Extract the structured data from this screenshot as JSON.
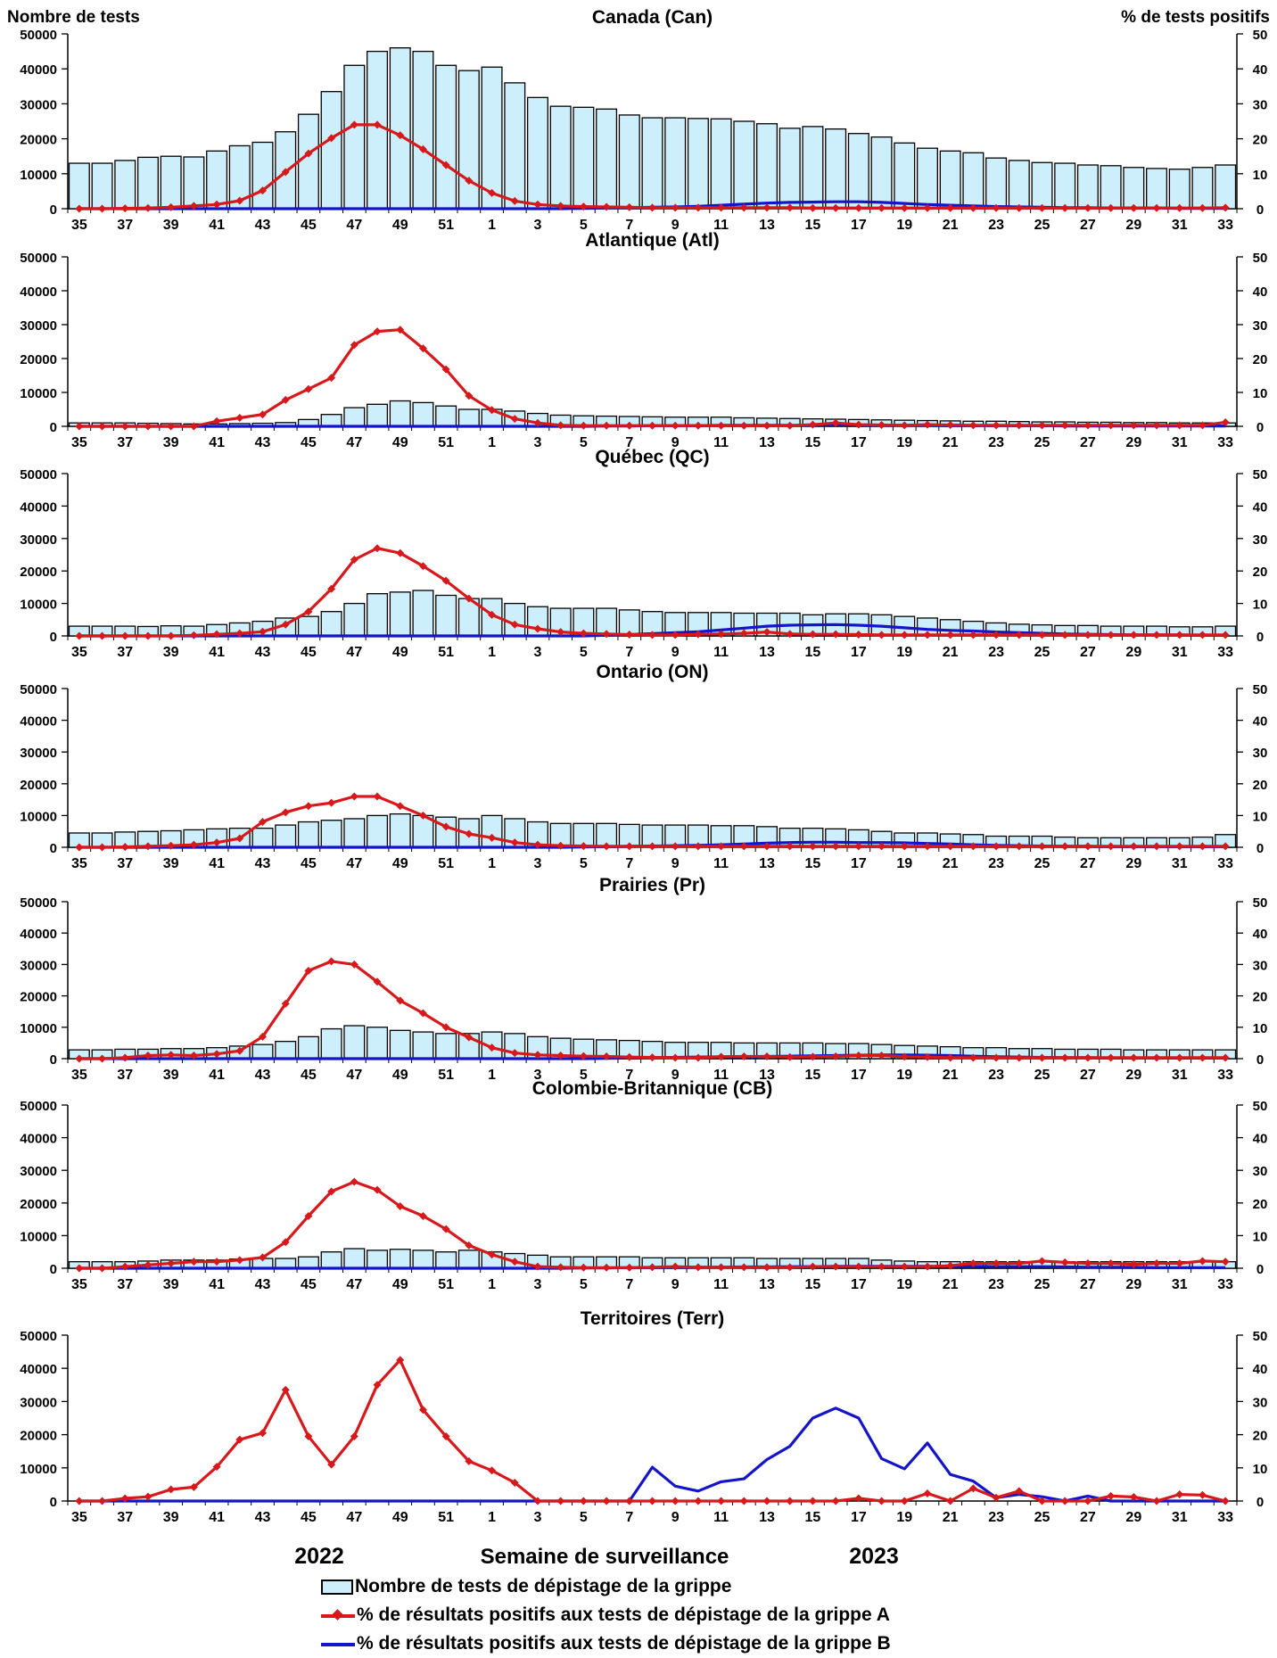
{
  "chart_data": {
    "type": "bar",
    "left_axis_title": "Nombre de tests",
    "right_axis_title": "% de tests positifs",
    "xlabel": "Semaine de surveillance",
    "year_labels": [
      "2022",
      "2023"
    ],
    "y_ticks": [
      "0",
      "10000",
      "20000",
      "30000",
      "40000",
      "50000"
    ],
    "y2_ticks": [
      "0",
      "10",
      "20",
      "30",
      "40",
      "50"
    ],
    "ylim": [
      0,
      50000
    ],
    "y2lim": [
      0,
      50
    ],
    "weeks": [
      35,
      36,
      37,
      38,
      39,
      40,
      41,
      42,
      43,
      44,
      45,
      46,
      47,
      48,
      49,
      50,
      51,
      52,
      1,
      2,
      3,
      4,
      5,
      6,
      7,
      8,
      9,
      10,
      11,
      12,
      13,
      14,
      15,
      16,
      17,
      18,
      19,
      20,
      21,
      22,
      23,
      24,
      25,
      26,
      27,
      28,
      29,
      30,
      31,
      32,
      33
    ],
    "x_tick_labels": [
      "35",
      "37",
      "39",
      "41",
      "43",
      "45",
      "47",
      "49",
      "51",
      "1",
      "3",
      "5",
      "7",
      "9",
      "11",
      "13",
      "15",
      "17",
      "19",
      "21",
      "23",
      "25",
      "27",
      "29",
      "31",
      "33"
    ],
    "colors": {
      "bars": "#cdeefb",
      "flu_a": "#d7191c",
      "flu_b": "#1414c8"
    },
    "legend": {
      "tests": "Nombre de tests de dépistage de la grippe",
      "flu_a": "% de résultats positifs aux tests de dépistage de la grippe A",
      "flu_b": "% de résultats positifs aux tests de dépistage de la grippe B"
    },
    "panels": [
      {
        "title": "Canada (Can)",
        "tests": [
          13000,
          13000,
          13800,
          14700,
          15000,
          14800,
          16500,
          18000,
          19000,
          22000,
          27000,
          33500,
          41000,
          45000,
          46000,
          45000,
          41000,
          39500,
          40500,
          36000,
          31800,
          29300,
          29000,
          28500,
          26800,
          26000,
          26000,
          25800,
          25700,
          25000,
          24300,
          23000,
          23500,
          22800,
          21500,
          20500,
          18800,
          17300,
          16500,
          16000,
          14500,
          13800,
          13200,
          13000,
          12500,
          12300,
          11800,
          11500,
          11300,
          11800,
          12500
        ],
        "flu_a": [
          0,
          0,
          0.1,
          0.2,
          0.4,
          0.8,
          1.2,
          2.3,
          5.2,
          10.5,
          15.8,
          20.2,
          24,
          24,
          21,
          17,
          12.5,
          8,
          4.5,
          2.2,
          1.2,
          0.8,
          0.6,
          0.5,
          0.4,
          0.3,
          0.3,
          0.3,
          0.3,
          0.3,
          0.3,
          0.3,
          0.2,
          0.2,
          0.2,
          0.2,
          0.2,
          0.2,
          0.2,
          0.2,
          0.2,
          0.2,
          0.2,
          0.2,
          0.2,
          0.2,
          0.2,
          0.2,
          0.2,
          0.2,
          0.3
        ],
        "flu_b": [
          0,
          0,
          0,
          0,
          0,
          0,
          0,
          0,
          0,
          0,
          0,
          0,
          0,
          0,
          0,
          0,
          0,
          0,
          0,
          0,
          0,
          0,
          0.1,
          0.2,
          0.3,
          0.4,
          0.5,
          0.7,
          1,
          1.3,
          1.6,
          1.8,
          1.9,
          2,
          2,
          1.8,
          1.5,
          1.2,
          1,
          0.8,
          0.6,
          0.5,
          0.4,
          0.3,
          0.3,
          0.2,
          0.2,
          0.2,
          0.1,
          0.1,
          0.1
        ]
      },
      {
        "title": "Atlantique (Atl)",
        "tests": [
          1000,
          1000,
          1000,
          900,
          800,
          700,
          700,
          800,
          900,
          1100,
          2000,
          3500,
          5500,
          6500,
          7500,
          7000,
          6000,
          5000,
          5000,
          4500,
          3800,
          3300,
          3100,
          3000,
          2900,
          2800,
          2700,
          2700,
          2700,
          2500,
          2400,
          2300,
          2200,
          2100,
          2000,
          1900,
          1800,
          1700,
          1600,
          1500,
          1500,
          1400,
          1300,
          1300,
          1200,
          1200,
          1100,
          1100,
          1000,
          1000,
          1000
        ],
        "flu_a": [
          0,
          0,
          0,
          0,
          0,
          0,
          1.5,
          2.5,
          3.5,
          7.8,
          11,
          14.3,
          24,
          28,
          28.5,
          23,
          16.8,
          9,
          4.8,
          2.2,
          1,
          0.3,
          0.2,
          0.2,
          0.2,
          0.2,
          0.2,
          0.2,
          0.2,
          0.2,
          0.2,
          0.2,
          0.5,
          1,
          0.5,
          0.4,
          0.3,
          0.5,
          0.4,
          0.3,
          0.3,
          0.3,
          0.3,
          0.3,
          0.3,
          0.3,
          0.3,
          0.3,
          0.3,
          0.3,
          1.2
        ],
        "flu_b": [
          0,
          0,
          0,
          0,
          0,
          0,
          0,
          0,
          0,
          0,
          0,
          0,
          0,
          0,
          0,
          0,
          0,
          0,
          0,
          0,
          0,
          0,
          0,
          0.1,
          0.1,
          0.2,
          0.2,
          0.2,
          0.3,
          0.3,
          0.3,
          0.3,
          0.3,
          0.4,
          0.4,
          0.3,
          0.3,
          0.3,
          0.2,
          0.2,
          0.2,
          0.2,
          0.2,
          0.1,
          0.1,
          0.1,
          0.1,
          0.1,
          0.1,
          0.1,
          0.1
        ]
      },
      {
        "title": "Québec (QC)",
        "tests": [
          3000,
          3000,
          3000,
          2900,
          3100,
          3000,
          3500,
          4000,
          4500,
          5500,
          6000,
          7500,
          10000,
          13000,
          13500,
          14000,
          12500,
          11500,
          11500,
          10000,
          9000,
          8500,
          8500,
          8500,
          8000,
          7500,
          7200,
          7200,
          7200,
          7000,
          7000,
          7000,
          6500,
          6800,
          6800,
          6500,
          6000,
          5500,
          5000,
          4500,
          4000,
          3600,
          3400,
          3200,
          3200,
          3000,
          3000,
          3000,
          2800,
          2800,
          3000
        ],
        "flu_a": [
          0,
          0,
          0,
          0,
          0,
          0.2,
          0.5,
          0.8,
          1.3,
          3.5,
          7.5,
          14.5,
          23.5,
          27,
          25.5,
          21.5,
          17,
          11.5,
          6.5,
          3.5,
          2.2,
          1.2,
          0.8,
          0.6,
          0.4,
          0.3,
          0.3,
          0.5,
          0.6,
          0.8,
          1.2,
          0.6,
          0.5,
          0.5,
          0.4,
          0.3,
          0.3,
          0.3,
          0.3,
          0.3,
          0.3,
          0.3,
          0.3,
          0.3,
          0.3,
          0.3,
          0.3,
          0.3,
          0.3,
          0.3,
          0.3
        ],
        "flu_b": [
          0,
          0,
          0,
          0,
          0,
          0,
          0,
          0,
          0,
          0,
          0,
          0,
          0,
          0,
          0,
          0,
          0,
          0,
          0,
          0,
          0,
          0,
          0,
          0.2,
          0.4,
          0.7,
          1,
          1.3,
          1.8,
          2.4,
          3,
          3.3,
          3.4,
          3.5,
          3.3,
          3,
          2.5,
          2,
          1.7,
          1.5,
          1.2,
          1,
          0.8,
          0.6,
          0.5,
          0.4,
          0.3,
          0.3,
          0.3,
          0.2,
          0.2
        ]
      },
      {
        "title": "Ontario (ON)",
        "tests": [
          4500,
          4500,
          4800,
          5000,
          5200,
          5500,
          5800,
          6000,
          6000,
          7000,
          8000,
          8500,
          9000,
          10000,
          10500,
          10000,
          9500,
          9000,
          10000,
          9000,
          8000,
          7500,
          7500,
          7500,
          7200,
          7000,
          7000,
          7000,
          6800,
          6800,
          6500,
          6000,
          6000,
          5800,
          5500,
          5000,
          4500,
          4500,
          4200,
          4000,
          3500,
          3500,
          3500,
          3200,
          3000,
          3000,
          3000,
          3000,
          3000,
          3200,
          4000
        ],
        "flu_a": [
          0,
          0,
          0.1,
          0.3,
          0.5,
          0.8,
          1.5,
          2.8,
          8,
          11,
          13,
          14,
          16,
          16,
          13,
          10,
          6.5,
          4.2,
          3,
          1.5,
          0.8,
          0.5,
          0.4,
          0.3,
          0.3,
          0.3,
          0.3,
          0.3,
          0.3,
          0.3,
          0.3,
          0.3,
          0.3,
          0.3,
          0.3,
          0.3,
          0.3,
          0.3,
          0.3,
          0.3,
          0.3,
          0.3,
          0.3,
          0.3,
          0.3,
          0.3,
          0.3,
          0.3,
          0.3,
          0.3,
          0.3
        ],
        "flu_b": [
          0,
          0,
          0,
          0,
          0,
          0,
          0,
          0,
          0,
          0,
          0,
          0,
          0,
          0,
          0,
          0,
          0,
          0,
          0,
          0,
          0,
          0,
          0.1,
          0.2,
          0.3,
          0.4,
          0.5,
          0.6,
          0.8,
          1,
          1.3,
          1.5,
          1.6,
          1.6,
          1.5,
          1.5,
          1.4,
          1.2,
          1,
          0.8,
          0.6,
          0.5,
          0.4,
          0.3,
          0.3,
          0.2,
          0.2,
          0.2,
          0.2,
          0.2,
          0.2
        ]
      },
      {
        "title": "Prairies (Pr)",
        "tests": [
          2800,
          2800,
          3000,
          3000,
          3200,
          3200,
          3500,
          4000,
          4500,
          5500,
          7000,
          9500,
          10500,
          10000,
          9000,
          8500,
          8000,
          8000,
          8500,
          8000,
          7000,
          6500,
          6200,
          6000,
          5800,
          5500,
          5200,
          5200,
          5200,
          5000,
          5000,
          5000,
          5000,
          4800,
          4800,
          4500,
          4200,
          4000,
          3800,
          3500,
          3500,
          3200,
          3200,
          3000,
          3000,
          3000,
          2800,
          2800,
          2800,
          2800,
          2800
        ],
        "flu_a": [
          0,
          0,
          0.3,
          1,
          1.2,
          1,
          1.5,
          2.5,
          7,
          17.5,
          28,
          31,
          30,
          24.5,
          18.5,
          14.5,
          10,
          6.8,
          3.5,
          1.8,
          1.2,
          1,
          0.8,
          0.7,
          0.5,
          0.4,
          0.3,
          0.3,
          0.6,
          0.7,
          0.7,
          0.5,
          0.6,
          0.7,
          1,
          1,
          0.6,
          0.5,
          0.3,
          0.3,
          0.3,
          0.3,
          0.3,
          0.3,
          0.3,
          0.3,
          0.3,
          0.3,
          0.3,
          0.3,
          0.3
        ],
        "flu_b": [
          0,
          0,
          0,
          0,
          0,
          0,
          0,
          0,
          0,
          0,
          0,
          0,
          0,
          0,
          0,
          0,
          0,
          0,
          0,
          0,
          0,
          0,
          0,
          0.1,
          0.2,
          0.3,
          0.4,
          0.5,
          0.6,
          0.6,
          0.7,
          0.8,
          0.9,
          1,
          1.1,
          1.2,
          1.2,
          1.1,
          1,
          0.8,
          0.6,
          0.5,
          0.4,
          0.3,
          0.3,
          0.2,
          0.2,
          0.2,
          0.2,
          0.2,
          0.2
        ]
      },
      {
        "title": "Colombie-Britannique (CB)",
        "tests": [
          2000,
          2000,
          2000,
          2200,
          2500,
          2500,
          2500,
          2800,
          3000,
          3000,
          3500,
          5000,
          6000,
          5500,
          5800,
          5500,
          5000,
          5500,
          5000,
          4500,
          4000,
          3500,
          3500,
          3500,
          3500,
          3200,
          3200,
          3200,
          3200,
          3200,
          3000,
          3000,
          3000,
          3000,
          3000,
          2500,
          2200,
          2000,
          2000,
          2000,
          2000,
          2000,
          2000,
          2000,
          2000,
          2000,
          2000,
          2000,
          2000,
          2000,
          2000
        ],
        "flu_a": [
          0,
          0,
          0.5,
          1,
          1.5,
          2,
          2,
          2.5,
          3.3,
          8,
          16,
          23.5,
          26.5,
          24,
          19,
          16,
          12,
          7,
          4.2,
          2,
          0.5,
          0.3,
          0.2,
          0.2,
          0.2,
          0.3,
          0.5,
          0.3,
          0.3,
          0.3,
          0.3,
          0.3,
          0.5,
          0.5,
          0.5,
          0.5,
          0.5,
          0.5,
          0.8,
          1.5,
          1.5,
          1.5,
          2.2,
          1.8,
          1.5,
          1.5,
          1.2,
          1.5,
          1.5,
          2.2,
          2
        ],
        "flu_b": [
          0,
          0,
          0,
          0,
          0,
          0,
          0,
          0,
          0,
          0,
          0,
          0,
          0,
          0,
          0,
          0,
          0,
          0,
          0,
          0,
          0,
          0,
          0.1,
          0.1,
          0.2,
          0.2,
          0.3,
          0.3,
          0.3,
          0.4,
          0.4,
          0.5,
          0.5,
          0.6,
          0.6,
          0.6,
          0.6,
          0.6,
          0.6,
          0.6,
          0.5,
          0.5,
          0.5,
          0.4,
          0.3,
          0.3,
          0.3,
          0.2,
          0.2,
          0.2,
          0.2
        ]
      },
      {
        "title": "Territoires (Terr)",
        "tests": [
          0,
          0,
          0,
          0,
          0,
          0,
          0,
          0,
          0,
          0,
          0,
          0,
          0,
          0,
          0,
          0,
          0,
          0,
          0,
          0,
          0,
          0,
          0,
          0,
          0,
          0,
          0,
          0,
          0,
          0,
          0,
          0,
          0,
          0,
          0,
          0,
          0,
          0,
          0,
          0,
          0,
          0,
          0,
          0,
          0,
          0,
          0,
          0,
          0,
          0,
          0
        ],
        "flu_a": [
          0,
          0,
          0.8,
          1.3,
          3.5,
          4.2,
          10.3,
          18.5,
          20.5,
          33.5,
          19.5,
          11,
          19.5,
          35,
          42.5,
          27.5,
          19.5,
          12,
          9.2,
          5.5,
          0,
          0,
          0,
          0,
          0,
          0,
          0,
          0,
          0,
          0,
          0,
          0,
          0,
          0,
          0.8,
          0,
          0,
          2.3,
          0,
          3.8,
          1,
          3,
          0,
          0,
          0,
          1.5,
          1.2,
          0,
          2,
          1.8,
          0
        ],
        "flu_b": [
          0,
          0,
          0,
          0,
          0,
          0,
          0,
          0,
          0,
          0,
          0,
          0,
          0,
          0,
          0,
          0,
          0,
          0,
          0,
          0,
          0,
          0,
          0,
          0,
          0,
          10.2,
          4.5,
          3,
          5.8,
          6.7,
          12.5,
          16.5,
          25,
          28,
          25,
          12.8,
          9.7,
          17.5,
          8,
          6,
          1,
          2,
          1.3,
          0,
          1.5,
          0,
          0,
          0,
          0,
          0,
          0
        ]
      }
    ]
  }
}
